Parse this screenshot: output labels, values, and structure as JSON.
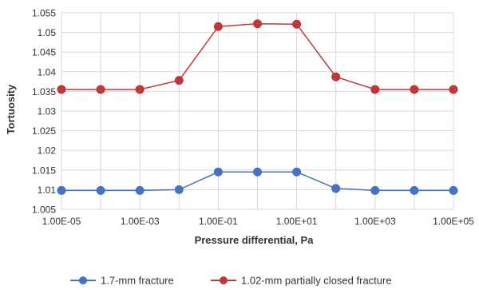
{
  "chart_data": {
    "type": "line",
    "title": "",
    "xlabel": "Pressure differential, Pa",
    "ylabel": "Tortuosity",
    "x_scale": "log",
    "xlim": [
      1e-05,
      100000.0
    ],
    "ylim": [
      1.005,
      1.055
    ],
    "x_ticks": [
      1e-05,
      0.001,
      0.1,
      10.0,
      1000.0,
      100000.0
    ],
    "x_tick_labels": [
      "1.00E-05",
      "1.00E-03",
      "1.00E-01",
      "1.00E+01",
      "1.00E+03",
      "1.00E+05"
    ],
    "y_ticks": [
      1.005,
      1.01,
      1.015,
      1.02,
      1.025,
      1.03,
      1.035,
      1.04,
      1.045,
      1.05,
      1.055
    ],
    "y_tick_labels": [
      "1.005",
      "1.01",
      "1.015",
      "1.02",
      "1.025",
      "1.03",
      "1.035",
      "1.04",
      "1.045",
      "1.05",
      "1.055"
    ],
    "grid": true,
    "legend_position": "bottom",
    "x": [
      1e-05,
      0.0001,
      0.001,
      0.01,
      0.1,
      1,
      10.0,
      100.0,
      1000.0,
      10000.0,
      100000.0
    ],
    "series": [
      {
        "name": "1.7-mm fracture",
        "color": "#4472C4",
        "values": [
          1.0098,
          1.0098,
          1.0098,
          1.01,
          1.0145,
          1.0145,
          1.0145,
          1.0103,
          1.0098,
          1.0098,
          1.0098
        ]
      },
      {
        "name": "1.02-mm partially closed fracture",
        "color": "#C0373A",
        "values": [
          1.0355,
          1.0355,
          1.0355,
          1.0378,
          1.0515,
          1.0522,
          1.0521,
          1.0387,
          1.0355,
          1.0355,
          1.0355
        ]
      }
    ]
  }
}
